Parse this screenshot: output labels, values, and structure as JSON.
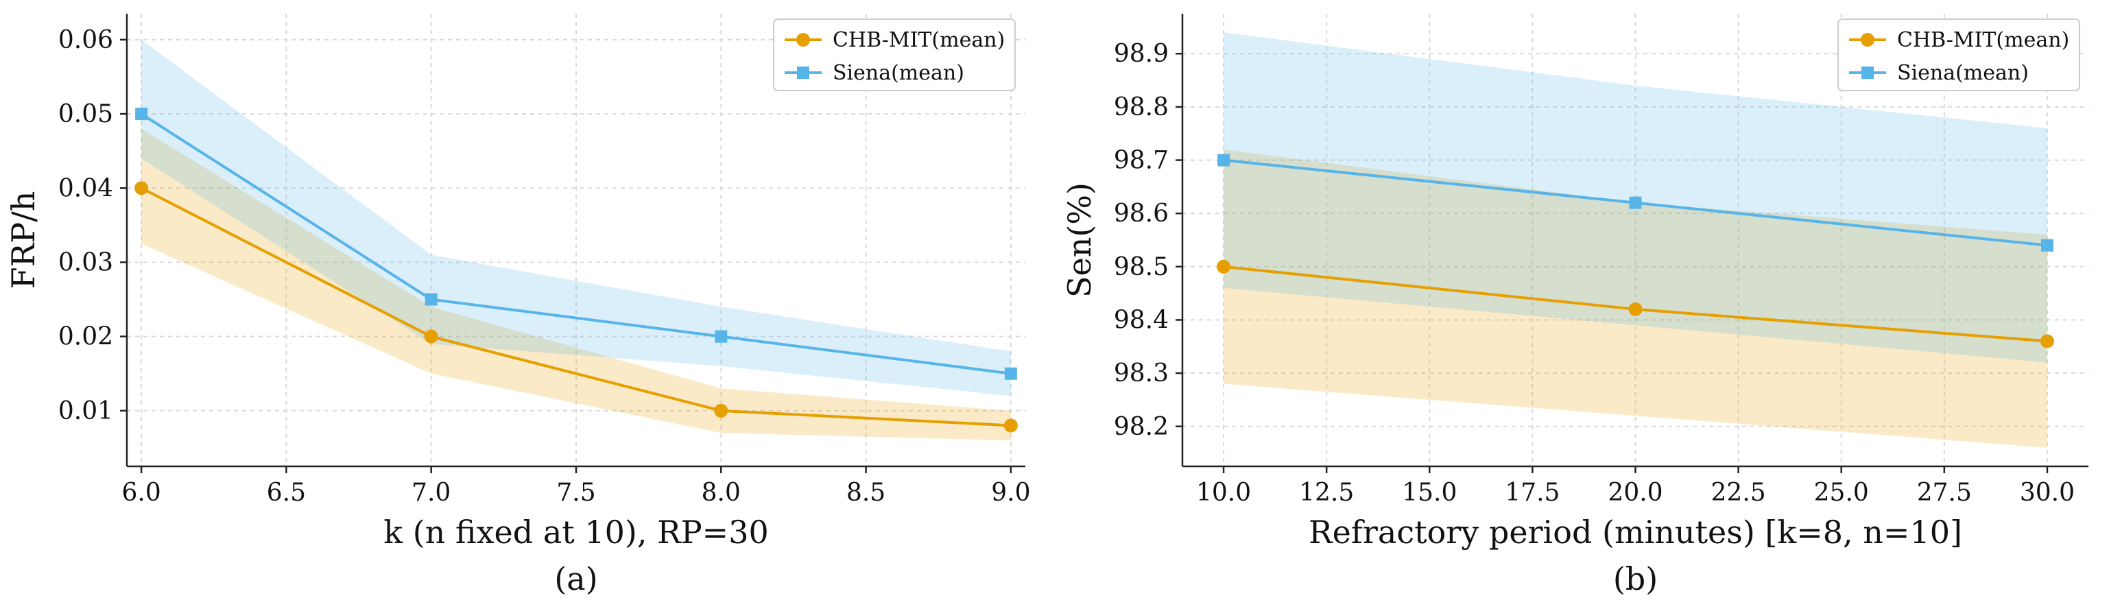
{
  "chart_data": [
    {
      "type": "line",
      "caption": "(a)",
      "xlabel": "k (n fixed at 10), RP=30",
      "ylabel": "FRP/h",
      "xlim": [
        5.95,
        9.05
      ],
      "ylim": [
        0.0025,
        0.0635
      ],
      "xticks": [
        6.0,
        6.5,
        7.0,
        7.5,
        8.0,
        8.5,
        9.0
      ],
      "xtick_labels": [
        "6.0",
        "6.5",
        "7.0",
        "7.5",
        "8.0",
        "8.5",
        "9.0"
      ],
      "yticks": [
        0.01,
        0.02,
        0.03,
        0.04,
        0.05,
        0.06
      ],
      "ytick_labels": [
        "0.01",
        "0.02",
        "0.03",
        "0.04",
        "0.05",
        "0.06"
      ],
      "grid": true,
      "legend_position": "top-right",
      "series": [
        {
          "name": "CHB-MIT(mean)",
          "color": "#E69F00",
          "marker": "circle",
          "x": [
            6.0,
            7.0,
            8.0,
            9.0
          ],
          "y": [
            0.04,
            0.02,
            0.01,
            0.008
          ],
          "lower": [
            0.0325,
            0.015,
            0.007,
            0.006
          ],
          "upper": [
            0.048,
            0.024,
            0.013,
            0.01
          ]
        },
        {
          "name": "Siena(mean)",
          "color": "#56B4E9",
          "marker": "square",
          "x": [
            6.0,
            7.0,
            8.0,
            9.0
          ],
          "y": [
            0.05,
            0.025,
            0.02,
            0.015
          ],
          "lower": [
            0.044,
            0.019,
            0.016,
            0.012
          ],
          "upper": [
            0.06,
            0.031,
            0.024,
            0.018
          ]
        }
      ]
    },
    {
      "type": "line",
      "caption": "(b)",
      "xlabel": "Refractory period (minutes) [k=8, n=10]",
      "ylabel": "Sen(%)",
      "xlim": [
        9.0,
        31.0
      ],
      "ylim": [
        98.125,
        98.975
      ],
      "xticks": [
        10.0,
        12.5,
        15.0,
        17.5,
        20.0,
        22.5,
        25.0,
        27.5,
        30.0
      ],
      "xtick_labels": [
        "10.0",
        "12.5",
        "15.0",
        "17.5",
        "20.0",
        "22.5",
        "25.0",
        "27.5",
        "30.0"
      ],
      "yticks": [
        98.2,
        98.3,
        98.4,
        98.5,
        98.6,
        98.7,
        98.8,
        98.9
      ],
      "ytick_labels": [
        "98.2",
        "98.3",
        "98.4",
        "98.5",
        "98.6",
        "98.7",
        "98.8",
        "98.9"
      ],
      "grid": true,
      "legend_position": "top-right",
      "series": [
        {
          "name": "CHB-MIT(mean)",
          "color": "#E69F00",
          "marker": "circle",
          "x": [
            10,
            20,
            30
          ],
          "y": [
            98.5,
            98.42,
            98.36
          ],
          "lower": [
            98.28,
            98.22,
            98.16
          ],
          "upper": [
            98.72,
            98.62,
            98.56
          ]
        },
        {
          "name": "Siena(mean)",
          "color": "#56B4E9",
          "marker": "square",
          "x": [
            10,
            20,
            30
          ],
          "y": [
            98.7,
            98.62,
            98.54
          ],
          "lower": [
            98.46,
            98.39,
            98.32
          ],
          "upper": [
            98.94,
            98.84,
            98.76
          ]
        }
      ]
    }
  ]
}
